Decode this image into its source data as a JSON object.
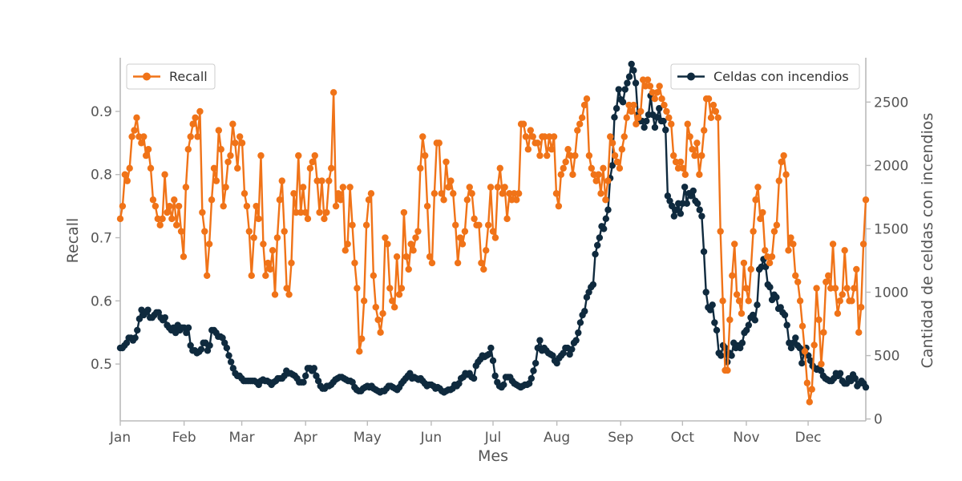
{
  "chart_data": {
    "type": "line",
    "xlabel": "Mes",
    "ylabel_left": "Recall",
    "ylabel_right": "Cantidad de celdas con incendios",
    "x_tick_labels": [
      "Jan",
      "Feb",
      "Mar",
      "Apr",
      "May",
      "Jun",
      "Jul",
      "Aug",
      "Sep",
      "Oct",
      "Nov",
      "Dec"
    ],
    "x_tick_days": [
      0,
      31,
      59,
      90,
      120,
      151,
      181,
      212,
      243,
      273,
      304,
      334
    ],
    "x_range_days": [
      0,
      362
    ],
    "ylim_left": [
      0.41,
      0.985
    ],
    "yticks_left": [
      0.5,
      0.6,
      0.7,
      0.8,
      0.9
    ],
    "ylim_right": [
      -15,
      2850
    ],
    "yticks_right": [
      0,
      500,
      1000,
      1500,
      2000,
      2500
    ],
    "series": [
      {
        "name": "Recall",
        "axis": "left",
        "color": "#f07318",
        "values": [
          0.73,
          0.75,
          0.8,
          0.79,
          0.81,
          0.86,
          0.87,
          0.89,
          0.86,
          0.85,
          0.86,
          0.83,
          0.84,
          0.81,
          0.76,
          0.75,
          0.73,
          0.72,
          0.73,
          0.8,
          0.74,
          0.75,
          0.73,
          0.76,
          0.72,
          0.75,
          0.71,
          0.67,
          0.78,
          0.84,
          0.86,
          0.88,
          0.89,
          0.86,
          0.9,
          0.74,
          0.71,
          0.64,
          0.69,
          0.76,
          0.81,
          0.79,
          0.87,
          0.84,
          0.75,
          0.78,
          0.82,
          0.83,
          0.88,
          0.85,
          0.81,
          0.86,
          0.85,
          0.77,
          0.75,
          0.71,
          0.64,
          0.7,
          0.75,
          0.73,
          0.83,
          0.69,
          0.64,
          0.66,
          0.65,
          0.68,
          0.61,
          0.7,
          0.76,
          0.79,
          0.71,
          0.62,
          0.61,
          0.66,
          0.77,
          0.74,
          0.83,
          0.74,
          0.78,
          0.74,
          0.73,
          0.81,
          0.82,
          0.83,
          0.79,
          0.74,
          0.79,
          0.73,
          0.74,
          0.79,
          0.81,
          0.93,
          0.75,
          0.77,
          0.76,
          0.78,
          0.68,
          0.69,
          0.78,
          0.72,
          0.66,
          0.62,
          0.52,
          0.54,
          0.6,
          0.72,
          0.76,
          0.77,
          0.64,
          0.59,
          0.57,
          0.55,
          0.58,
          0.7,
          0.69,
          0.62,
          0.6,
          0.59,
          0.67,
          0.61,
          0.62,
          0.74,
          0.67,
          0.65,
          0.69,
          0.68,
          0.7,
          0.71,
          0.81,
          0.86,
          0.83,
          0.75,
          0.67,
          0.66,
          0.77,
          0.85,
          0.85,
          0.77,
          0.76,
          0.82,
          0.78,
          0.79,
          0.77,
          0.72,
          0.66,
          0.7,
          0.69,
          0.71,
          0.76,
          0.78,
          0.77,
          0.73,
          0.72,
          0.72,
          0.66,
          0.65,
          0.68,
          0.72,
          0.78,
          0.71,
          0.7,
          0.78,
          0.81,
          0.77,
          0.78,
          0.73,
          0.77,
          0.76,
          0.77,
          0.76,
          0.77,
          0.88,
          0.88,
          0.86,
          0.84,
          0.87,
          0.86,
          0.85,
          0.85,
          0.83,
          0.86,
          0.86,
          0.83,
          0.86,
          0.84,
          0.86,
          0.77,
          0.75,
          0.8,
          0.81,
          0.82,
          0.84,
          0.83,
          0.8,
          0.83,
          0.87,
          0.88,
          0.89,
          0.91,
          0.92,
          0.83,
          0.81,
          0.8,
          0.79,
          0.8,
          0.77,
          0.81,
          0.76,
          0.79,
          0.86,
          0.85,
          0.83,
          0.82,
          0.81,
          0.84,
          0.86,
          0.89,
          0.91,
          0.9,
          0.91,
          0.88,
          0.89,
          0.9,
          0.95,
          0.94,
          0.95,
          0.94,
          0.93,
          0.92,
          0.93,
          0.94,
          0.92,
          0.91,
          0.9,
          0.89,
          0.88,
          0.83,
          0.82,
          0.81,
          0.82,
          0.81,
          0.8,
          0.88,
          0.86,
          0.84,
          0.83,
          0.85,
          0.8,
          0.83,
          0.87,
          0.92,
          0.92,
          0.89,
          0.91,
          0.9,
          0.89,
          0.71,
          0.6,
          0.49,
          0.49,
          0.57,
          0.64,
          0.69,
          0.61,
          0.6,
          0.58,
          0.66,
          0.62,
          0.6,
          0.65,
          0.71,
          0.76,
          0.78,
          0.73,
          0.74,
          0.68,
          0.67,
          0.66,
          0.67,
          0.71,
          0.72,
          0.79,
          0.82,
          0.83,
          0.8,
          0.68,
          0.7,
          0.69,
          0.64,
          0.63,
          0.6,
          0.56,
          0.52,
          0.47,
          0.44,
          0.46,
          0.53,
          0.62,
          0.57,
          0.5,
          0.55,
          0.63,
          0.64,
          0.62,
          0.69,
          0.62,
          0.58,
          0.6,
          0.61,
          0.68,
          0.62,
          0.6,
          0.6,
          0.62,
          0.65,
          0.55,
          0.59,
          0.69,
          0.76
        ]
      },
      {
        "name": "Celdas con incendios",
        "axis": "right",
        "color": "#0f2a3e",
        "values": [
          560,
          560,
          580,
          600,
          640,
          640,
          620,
          640,
          700,
          790,
          860,
          820,
          840,
          860,
          800,
          800,
          820,
          840,
          840,
          800,
          780,
          800,
          740,
          720,
          700,
          720,
          680,
          740,
          700,
          720,
          720,
          680,
          720,
          580,
          540,
          540,
          520,
          530,
          550,
          600,
          600,
          540,
          580,
          700,
          700,
          680,
          650,
          650,
          640,
          600,
          560,
          500,
          450,
          400,
          360,
          340,
          340,
          320,
          300,
          300,
          300,
          300,
          300,
          300,
          290,
          270,
          300,
          310,
          300,
          300,
          290,
          270,
          290,
          300,
          320,
          320,
          320,
          340,
          380,
          360,
          360,
          350,
          340,
          320,
          290,
          290,
          290,
          340,
          400,
          400,
          380,
          400,
          340,
          300,
          260,
          240,
          240,
          260,
          260,
          270,
          290,
          310,
          320,
          330,
          330,
          320,
          310,
          300,
          300,
          290,
          250,
          230,
          220,
          220,
          240,
          250,
          260,
          250,
          260,
          240,
          230,
          220,
          210,
          220,
          220,
          240,
          260,
          260,
          250,
          240,
          230,
          250,
          280,
          300,
          320,
          340,
          360,
          320,
          330,
          320,
          310,
          320,
          300,
          280,
          260,
          270,
          270,
          260,
          240,
          250,
          240,
          220,
          210,
          220,
          230,
          230,
          240,
          270,
          260,
          280,
          320,
          330,
          360,
          350,
          360,
          330,
          320,
          420,
          450,
          470,
          500,
          490,
          500,
          510,
          560,
          460,
          340,
          290,
          260,
          250,
          270,
          330,
          330,
          330,
          300,
          280,
          270,
          260,
          250,
          260,
          270,
          270,
          280,
          320,
          380,
          440,
          560,
          620,
          540,
          560,
          540,
          520,
          510,
          500,
          460,
          440,
          480,
          500,
          520,
          560,
          560,
          510,
          550,
          600,
          620,
          680,
          760,
          820,
          850,
          960,
          1000,
          1040,
          1060,
          1300,
          1370,
          1430,
          1520,
          1500,
          1580,
          1650,
          1900,
          2000,
          2380,
          2450,
          2600,
          2520,
          2500,
          2600,
          2650,
          2700,
          2800,
          2750,
          2650,
          2400,
          2350,
          2350,
          2300,
          2350,
          2400,
          2550,
          2400,
          2300,
          2380,
          2450,
          2350,
          2350,
          2280,
          1760,
          1720,
          1680,
          1600,
          1650,
          1700,
          1620,
          1700,
          1830,
          1700,
          1780,
          1760,
          1800,
          1720,
          1700,
          1650,
          1600,
          1320,
          1000,
          880,
          860,
          900,
          760,
          700,
          520,
          500,
          580,
          560,
          450,
          520,
          500,
          600,
          560,
          580,
          560,
          600,
          680,
          700,
          740,
          800,
          820,
          780,
          900,
          1180,
          1200,
          1260,
          1200,
          1060,
          1040,
          940,
          980,
          960,
          870,
          880,
          840,
          820,
          740,
          600,
          560,
          600,
          640,
          580,
          560,
          440,
          520,
          560,
          500,
          460,
          420,
          400,
          390,
          400,
          380,
          340,
          320,
          310,
          300,
          300,
          320,
          360,
          340,
          360,
          300,
          280,
          280,
          320,
          300,
          350,
          320,
          260,
          280,
          300,
          280,
          250
        ]
      }
    ],
    "legend": {
      "left": "top-left",
      "right": "top-right"
    }
  }
}
